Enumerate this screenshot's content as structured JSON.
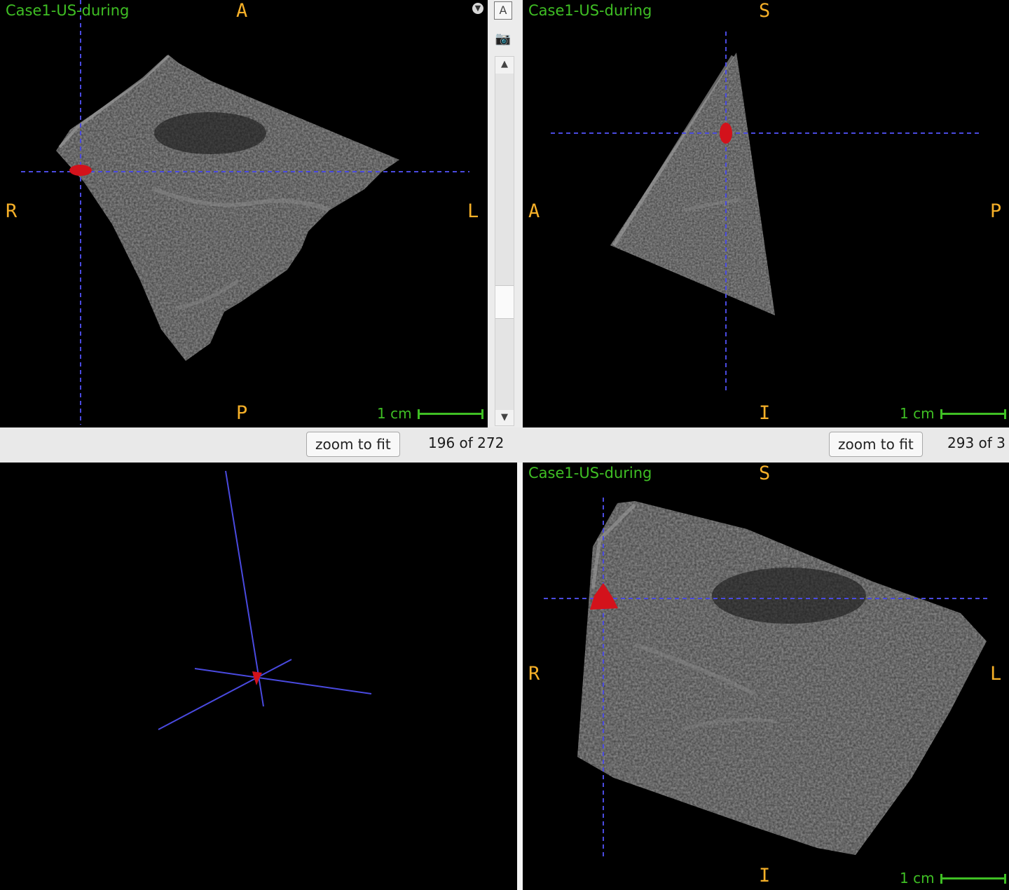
{
  "volume_name": "Case1-US-during",
  "scale_label": "1 cm",
  "zoom_button_label": "zoom to fit",
  "menu_icon": "chevron-down-icon",
  "colors": {
    "background": "#000000",
    "volume_label": "#3fbf24",
    "orientation_marker": "#f6b028",
    "crosshair": "#4a4ae0",
    "segmentation": "#d3121b",
    "scale_bar": "#3fbf24"
  },
  "axial": {
    "top": "A",
    "bottom": "P",
    "left": "R",
    "right": "L",
    "slice_count": "196 of 272"
  },
  "sagittal": {
    "top": "S",
    "bottom": "I",
    "left": "A",
    "right": "P",
    "slice_count": "293 of 3"
  },
  "coronal": {
    "top": "S",
    "bottom": "I",
    "left": "R",
    "right": "L"
  },
  "toolbar": {
    "annotation_icon": "A",
    "snapshot_icon": "camera-icon"
  }
}
